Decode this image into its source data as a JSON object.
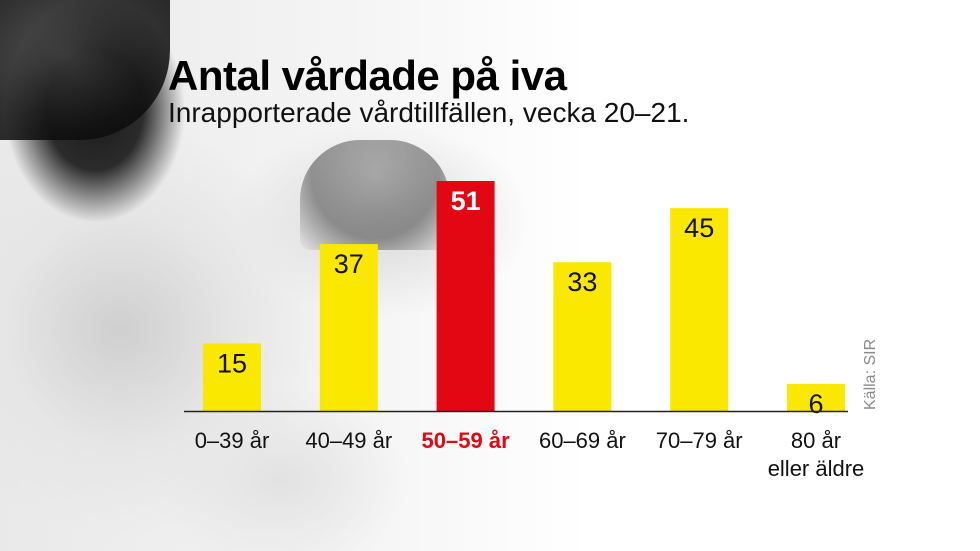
{
  "title": "Antal vårdade på iva",
  "subtitle": "Inrapporterade vårdtillfällen, vecka 20–21.",
  "source": "Källa: SIR",
  "colors": {
    "bar": "#fbe800",
    "highlight": "#e30613",
    "text": "#111111",
    "highlight_text": "#ffffff",
    "axis": "#222222"
  },
  "chart_data": {
    "type": "bar",
    "title": "Antal vårdade på iva",
    "subtitle": "Inrapporterade vårdtillfällen, vecka 20–21.",
    "categories": [
      "0–39 år",
      "40–49 år",
      "50–59 år",
      "60–69 år",
      "70–79 år",
      "80 år eller äldre"
    ],
    "category_lines": [
      [
        "0–39 år"
      ],
      [
        "40–49 år"
      ],
      [
        "50–59 år"
      ],
      [
        "60–69 år"
      ],
      [
        "70–79 år"
      ],
      [
        "80 år",
        "eller äldre"
      ]
    ],
    "values": [
      15,
      37,
      51,
      33,
      45,
      6
    ],
    "highlight_index": 2,
    "ylim": [
      0,
      51
    ],
    "grid": false,
    "legend": "none"
  }
}
